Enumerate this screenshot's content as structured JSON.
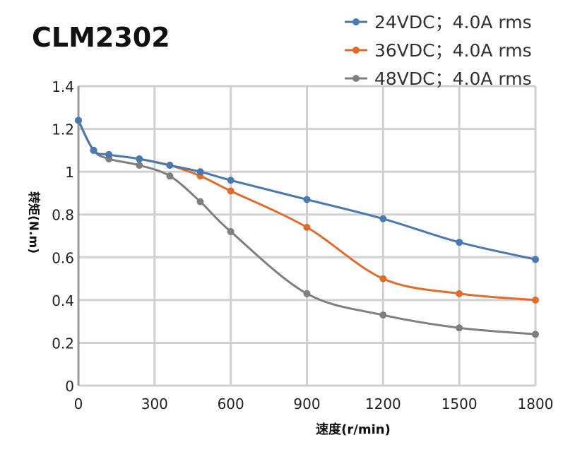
{
  "chart_data": {
    "type": "line",
    "title": "CLM2302",
    "xlabel": "速度(r/min)",
    "ylabel": "转矩(N.m)",
    "x": [
      0,
      60,
      120,
      240,
      360,
      480,
      600,
      900,
      1200,
      1500,
      1800
    ],
    "xlim": [
      0,
      1800
    ],
    "ylim": [
      0,
      1.4
    ],
    "xticks": [
      "0",
      "300",
      "600",
      "900",
      "1200",
      "1500",
      "1800"
    ],
    "yticks": [
      "0",
      "0.2",
      "0.4",
      "0.6",
      "0.8",
      "1",
      "1.2",
      "1.4"
    ],
    "grid": true,
    "smooth": true,
    "legend_position": "top-right",
    "series": [
      {
        "name": "24VDC；4.0A rms",
        "color": "#4a78b0",
        "values": [
          1.24,
          1.1,
          1.08,
          1.06,
          1.03,
          1.0,
          0.96,
          0.87,
          0.78,
          0.67,
          0.59
        ]
      },
      {
        "name": "36VDC；4.0A rms",
        "color": "#e06c2c",
        "values": [
          1.24,
          1.1,
          1.08,
          1.06,
          1.03,
          0.98,
          0.91,
          0.74,
          0.5,
          0.43,
          0.4
        ]
      },
      {
        "name": "48VDC；4.0A rms",
        "color": "#7f7f7f",
        "values": [
          1.24,
          1.1,
          1.06,
          1.03,
          0.98,
          0.86,
          0.72,
          0.43,
          0.33,
          0.27,
          0.24
        ]
      }
    ]
  }
}
